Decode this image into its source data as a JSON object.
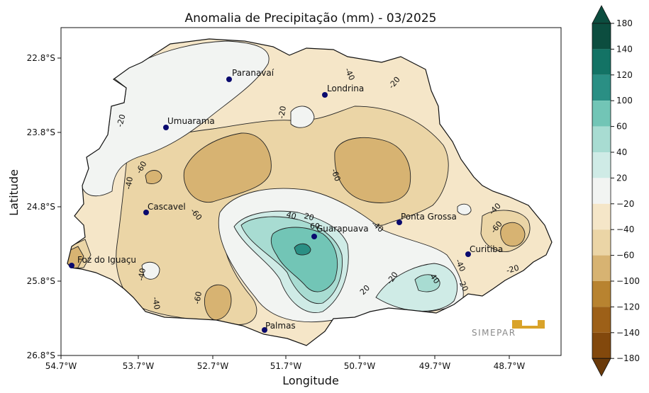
{
  "title": "Anomalia de Precipitação (mm) - 03/2025",
  "xlabel": "Longitude",
  "ylabel": "Latitude",
  "x_ticks": [
    "54.7°W",
    "53.7°W",
    "52.7°W",
    "51.7°W",
    "50.7°W",
    "49.7°W",
    "48.7°W"
  ],
  "y_ticks": [
    "22.8°S",
    "23.8°S",
    "24.8°S",
    "25.8°S",
    "26.8°S"
  ],
  "cities": [
    {
      "name": "Paranavaí"
    },
    {
      "name": "Londrina"
    },
    {
      "name": "Umuarama"
    },
    {
      "name": "Cascavel"
    },
    {
      "name": "Ponta Grossa"
    },
    {
      "name": "Guarapuava"
    },
    {
      "name": "Curitiba"
    },
    {
      "name": "Foz do Iguaçu"
    },
    {
      "name": "Palmas"
    }
  ],
  "contour_labels": [
    "-20",
    "-20",
    "-20",
    "-20",
    "-20",
    "-40",
    "-40",
    "-40",
    "-40",
    "-40",
    "-40",
    "-40",
    "-60",
    "-60",
    "-60",
    "-60",
    "-60",
    "40",
    "60",
    "20",
    "-20",
    "40",
    "20"
  ],
  "colorbar": {
    "ticks": [
      "180",
      "140",
      "120",
      "100",
      "60",
      "40",
      "20",
      "−20",
      "−40",
      "−60",
      "−100",
      "−120",
      "−140",
      "−180"
    ],
    "colors": [
      "#0c4d3f",
      "#137365",
      "#2a8f84",
      "#72c5b6",
      "#a8dcd2",
      "#cfebe6",
      "#f2f4f2",
      "#f5e6c8",
      "#ebd5a6",
      "#d7b372",
      "#b88330",
      "#9d6018",
      "#82480c",
      "#6a3a0a"
    ]
  },
  "logo_text": "SIMEPAR"
}
